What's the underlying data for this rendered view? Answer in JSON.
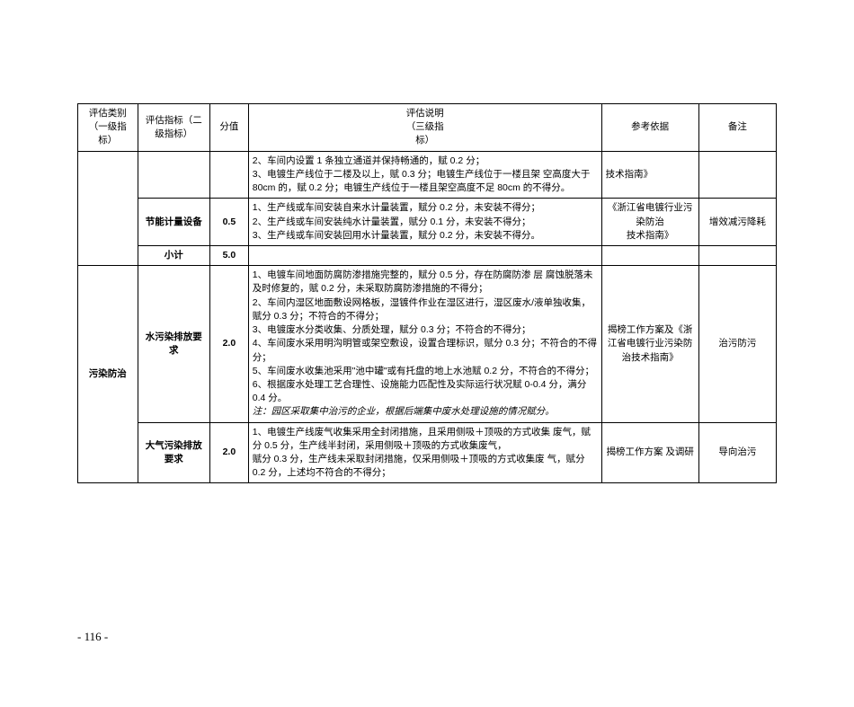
{
  "header": {
    "col1": "评估类别（一级指标）",
    "col2": "评估指标（二级指标）",
    "col3": "分值",
    "col4_l1": "评估说明",
    "col4_l2": "（三级指",
    "col4_l3": "标）",
    "col5": "参考依据",
    "col6": "备注"
  },
  "rows": {
    "r1": {
      "desc": "2、车间内设置 1 条独立通道并保持畅通的，赋 0.2 分；\n3、电镀生产线位于二楼及以上，赋 0.3 分；电镀生产线位于一楼且架 空高度大于 80cm 的，赋 0.2 分；电镀生产线位于一楼且架空高度不足 80cm 的不得分。",
      "ref": "技术指南》"
    },
    "r2": {
      "ind": "节能计量设备",
      "score": "0.5",
      "desc": "1、生产线或车间安装自来水计量装置，赋分 0.2 分，未安装不得分；\n2、生产线或车间安装纯水计量装置，赋分 0.1 分，未安装不得分；\n3、生产线或车间安装回用水计量装置，赋分 0.2 分，未安装不得分。",
      "ref": "《浙江省电镀行业污染防治\n技术指南》",
      "note": "增效减污降耗"
    },
    "r3": {
      "ind": "小计",
      "score": "5.0"
    },
    "r4": {
      "cat": "污染防治",
      "ind": "水污染排放要求",
      "score": "2.0",
      "desc_main": "1、电镀车间地面防腐防渗措施完整的，赋分 0.5 分，存在防腐防渗 层 腐蚀脱落未及时修复的，赋 0.2 分，未采取防腐防渗措施的不得分；\n2、车间内湿区地面敷设网格板，湿镀件作业在湿区进行，湿区废水/液单独收集，赋分 0.3 分；不符合的不得分；\n3、电镀废水分类收集、分质处理，赋分 0.3 分；不符合的不得分；\n4、车间废水采用明沟明管或架空敷设，设置合理标识，赋分 0.3 分；不符合的不得分；\n5、车间废水收集池采用\"池中罐\"或有托盘的地上水池赋 0.2 分，不符合的不得分；\n6、根据废水处理工艺合理性、设施能力匹配性及实际运行状况赋 0-0.4 分，满分 0.4 分。",
      "desc_note": "注：园区采取集中治污的企业，根据后端集中废水处理设施的情况赋分。",
      "ref": "揭榜工作方案及《浙江省电镀行业污染防治技术指南》",
      "note": "治污防污"
    },
    "r5": {
      "ind": "大气污染排放要求",
      "score": "2.0",
      "desc": "1、电镀生产线废气收集采用全封闭措施，且采用侧吸＋顶吸的方式收集 废气，赋分 0.5 分，生产线半封闭，采用侧吸＋顶吸的方式收集废气，\n赋分 0.3 分，生产线未采取封闭措施，仅采用侧吸＋顶吸的方式收集废 气，赋分 0.2 分，上述均不符合的不得分；",
      "ref": "揭榜工作方案 及调研",
      "note": "导向治污"
    }
  },
  "page_number": "- 116 -"
}
